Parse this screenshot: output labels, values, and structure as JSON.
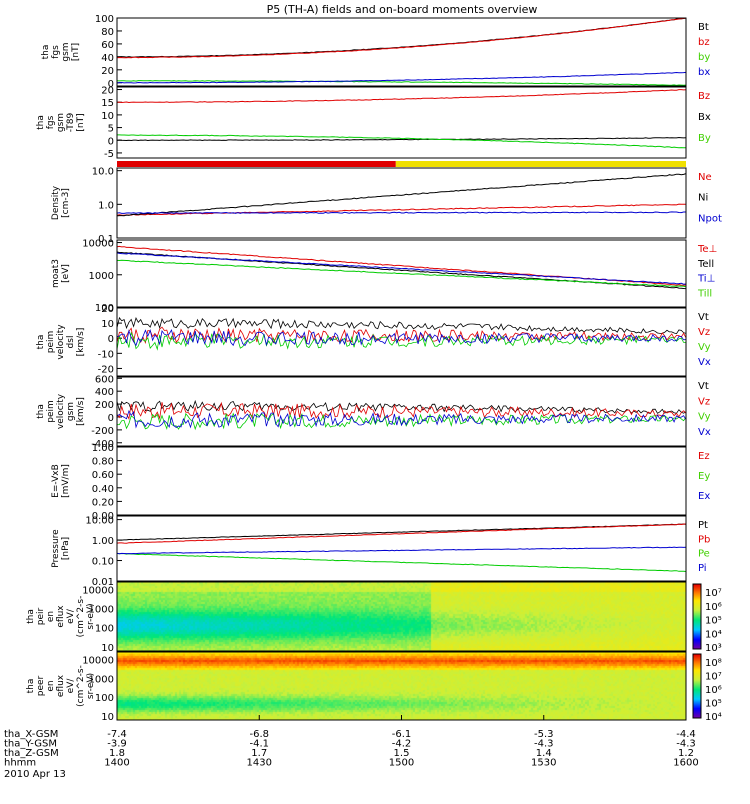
{
  "title": "P5 (TH-A) fields and on-board moments overview",
  "date_label": "2010 Apr 13",
  "colors": {
    "black": "#000000",
    "red": "#e00000",
    "green": "#00cc00",
    "blue": "#0000d0",
    "yellow": "#f0e000",
    "lime": "#40d000"
  },
  "time_axis": {
    "ticks": [
      "1400",
      "1430",
      "1500",
      "1530",
      "1600"
    ],
    "minutes_from": 0,
    "minutes_to": 120,
    "rows": [
      {
        "label": "tha_X-GSM",
        "values": [
          "-7.4",
          "-6.8",
          "-6.1",
          "-5.3",
          "-4.4"
        ]
      },
      {
        "label": "tha_Y-GSM",
        "values": [
          "-3.9",
          "-4.1",
          "-4.2",
          "-4.3",
          "-4.3"
        ]
      },
      {
        "label": "tha_Z-GSM",
        "values": [
          "1.8",
          "1.7",
          "1.5",
          "1.4",
          "1.2"
        ]
      },
      {
        "label": "hhmm",
        "values": [
          "1400",
          "1430",
          "1500",
          "1530",
          "1600"
        ]
      }
    ]
  },
  "chart_data": [
    {
      "type": "line",
      "ylabel_lines": [
        "tha",
        "fgs",
        "gsm",
        "[nT]"
      ],
      "ylim": [
        -5,
        100
      ],
      "yticks": [
        "100",
        "80",
        "60",
        "40",
        "20",
        "0"
      ],
      "series": [
        {
          "name": "Bt",
          "color": "#000000",
          "start": 40,
          "end": 100
        },
        {
          "name": "bz",
          "color": "#e00000",
          "start": 39,
          "end": 100
        },
        {
          "name": "by",
          "color": "#00cc00",
          "start": 3,
          "end": -4
        },
        {
          "name": "bx",
          "color": "#0000d0",
          "start": 0,
          "end": 16
        }
      ]
    },
    {
      "type": "line",
      "ylabel_lines": [
        "tha",
        "fgs",
        "gsm",
        "-T89",
        "[nT]"
      ],
      "ylim": [
        -7,
        21
      ],
      "yticks": [
        "20",
        "15",
        "10",
        "5",
        "0",
        "-5"
      ],
      "series": [
        {
          "name": "Bz",
          "color": "#e00000",
          "start": 15,
          "end": 20
        },
        {
          "name": "Bx",
          "color": "#000000",
          "start": 0,
          "end": 1
        },
        {
          "name": "By",
          "color": "#00cc00",
          "start": 2,
          "end": -3
        }
      ]
    },
    {
      "type": "bar",
      "name": "status bar",
      "segments": [
        {
          "color": "#e00000",
          "from": 0,
          "to": 0.49
        },
        {
          "color": "#f0e000",
          "from": 0.49,
          "to": 1
        }
      ]
    },
    {
      "type": "line",
      "ylabel_lines": [
        "Density",
        "[cm-3]"
      ],
      "yscale": "log",
      "ylim": [
        0.1,
        12
      ],
      "yticks": [
        "10.0",
        "1.0",
        "0.1"
      ],
      "series": [
        {
          "name": "Ne",
          "color": "#e00000",
          "start": 0.48,
          "end": 1.0
        },
        {
          "name": "Ni",
          "color": "#000000",
          "start": 0.45,
          "end": 8
        },
        {
          "name": "Npot",
          "color": "#0000d0",
          "start": 0.55,
          "end": 0.58
        }
      ]
    },
    {
      "type": "line",
      "ylabel_lines": [
        "moat3",
        "[eV]"
      ],
      "yscale": "log",
      "ylim": [
        100,
        12000
      ],
      "yticks": [
        "10000",
        "1000",
        "100"
      ],
      "series": [
        {
          "name": "Te⊥",
          "color": "#e00000",
          "start": 7500,
          "end": 470
        },
        {
          "name": "Tell",
          "color": "#000000",
          "start": 5000,
          "end": 380
        },
        {
          "name": "Ti⊥",
          "color": "#0000d0",
          "start": 4700,
          "end": 520
        },
        {
          "name": "Till",
          "color": "#00cc00",
          "start": 2800,
          "end": 430
        }
      ]
    },
    {
      "type": "line",
      "ylabel_lines": [
        "tha",
        "peim",
        "velocity",
        "dsl",
        "[km/s]"
      ],
      "ylim": [
        -25,
        20
      ],
      "yticks": [
        "20",
        "10",
        "0",
        "-10",
        "-20"
      ],
      "series": [
        {
          "name": "Vt",
          "color": "#000000",
          "start": 10,
          "end": 4
        },
        {
          "name": "Vz",
          "color": "#e00000",
          "start": 2,
          "end": 1
        },
        {
          "name": "Vy",
          "color": "#00cc00",
          "start": -2,
          "end": -1
        },
        {
          "name": "Vx",
          "color": "#0000d0",
          "start": 0,
          "end": 0
        }
      ]
    },
    {
      "type": "line",
      "ylabel_lines": [
        "tha",
        "peim",
        "velocity",
        "gsm",
        "[km/s]"
      ],
      "ylim": [
        -450,
        620
      ],
      "yticks": [
        "600",
        "400",
        "200",
        "0",
        "-200",
        "-400"
      ],
      "series": [
        {
          "name": "Vt",
          "color": "#000000",
          "start": 170,
          "end": 80
        },
        {
          "name": "Vz",
          "color": "#e00000",
          "start": 100,
          "end": 50
        },
        {
          "name": "Vy",
          "color": "#00cc00",
          "start": -60,
          "end": -30
        },
        {
          "name": "Vx",
          "color": "#0000d0",
          "start": -40,
          "end": -20
        }
      ]
    },
    {
      "type": "line",
      "ylabel_lines": [
        "E=-VxB",
        "[mV/m]"
      ],
      "ylim": [
        0,
        1.0
      ],
      "yticks": [
        "1.00",
        "0.80",
        "0.60",
        "0.40",
        "0.20",
        "0.00"
      ],
      "series": [
        {
          "name": "Ez",
          "color": "#e00000"
        },
        {
          "name": "Ey",
          "color": "#00cc00"
        },
        {
          "name": "Ex",
          "color": "#0000d0"
        }
      ]
    },
    {
      "type": "line",
      "ylabel_lines": [
        "Pressure",
        "[nPa]"
      ],
      "yscale": "log",
      "ylim": [
        0.01,
        15
      ],
      "yticks": [
        "10.00",
        "1.00",
        "0.10",
        "0.01"
      ],
      "series": [
        {
          "name": "Pt",
          "color": "#000000",
          "start": 1.0,
          "end": 6
        },
        {
          "name": "Pb",
          "color": "#e00000",
          "start": 0.7,
          "end": 6
        },
        {
          "name": "Pe",
          "color": "#00cc00",
          "start": 0.22,
          "end": 0.03
        },
        {
          "name": "Pi",
          "color": "#0000d0",
          "start": 0.22,
          "end": 0.45
        }
      ]
    },
    {
      "type": "heatmap",
      "ylabel_lines": [
        "tha",
        "peir",
        "en",
        "eflux",
        "eV/",
        "(cm^2-s-",
        "sr-eV)"
      ],
      "yscale": "log",
      "ylim": [
        6,
        25000
      ],
      "yticks": [
        "10000",
        "1000",
        "100",
        "10"
      ],
      "colorbar_ticks": [
        "10⁷",
        "10⁶",
        "10⁵",
        "10⁴",
        "10³"
      ]
    },
    {
      "type": "heatmap",
      "ylabel_lines": [
        "tha",
        "peer",
        "en",
        "eflux",
        "eV/",
        "(cm^2-s-",
        "sr-eV)"
      ],
      "yscale": "log",
      "ylim": [
        6,
        25000
      ],
      "yticks": [
        "10000",
        "1000",
        "100",
        "10"
      ],
      "colorbar_ticks": [
        "10⁸",
        "10⁷",
        "10⁶",
        "10⁵",
        "10⁴"
      ]
    }
  ]
}
